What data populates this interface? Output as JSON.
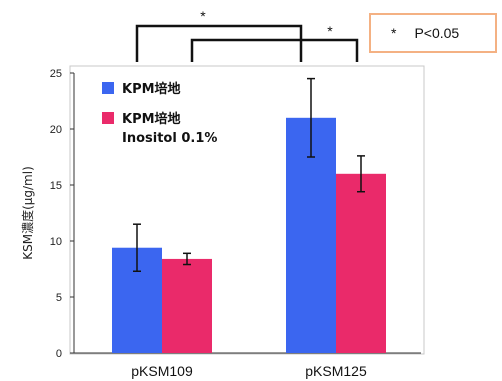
{
  "chart_data": {
    "type": "bar",
    "categories": [
      "pKSM109",
      "pKSM125"
    ],
    "series": [
      {
        "name": "KPM培地",
        "values": [
          9.4,
          21.0
        ],
        "errors": [
          2.1,
          3.5
        ],
        "color": "#3b66f0"
      },
      {
        "name": "KPM培地\nInositol 0.1%",
        "values": [
          8.4,
          16.0
        ],
        "errors": [
          0.5,
          1.6
        ],
        "color": "#ea2a6a"
      }
    ],
    "ylabel": "KSM濃度(μg/ml)",
    "ylim": [
      0,
      25
    ],
    "yticks": [
      "0",
      "5",
      "10",
      "15",
      "20",
      "25"
    ],
    "grid": false,
    "legend": "top-left",
    "significance": [
      {
        "between": "pKSM109 KPM培地 – pKSM125 KPM培地",
        "mark": "*"
      },
      {
        "between": "pKSM109 Inositol – pKSM125 Inositol",
        "mark": "*"
      }
    ],
    "pvalue_note": {
      "star": "*",
      "text": "P<0.05"
    }
  }
}
